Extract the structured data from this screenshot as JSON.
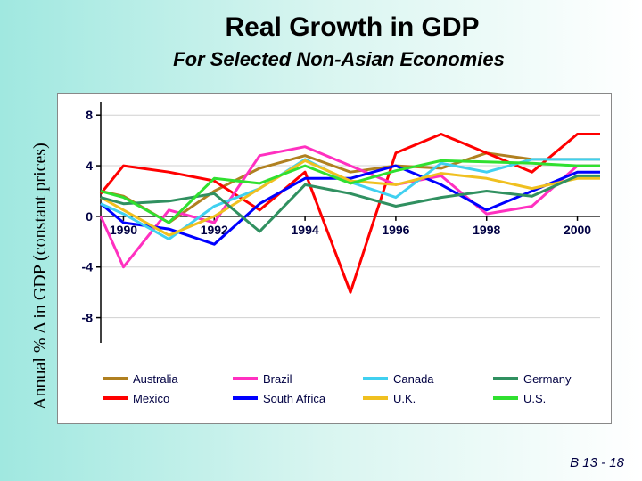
{
  "title": "Real Growth in GDP",
  "subtitle": "For Selected Non-Asian Economies",
  "ylabel": "Annual % Δ in GDP (constant prices)",
  "footer": "B 13 - 18",
  "chart": {
    "type": "line",
    "background_color": "#ffffff",
    "grid_color": "#d0d0d0",
    "axis_color": "#000000",
    "tick_font_color": "#000042",
    "tick_fontsize": 14,
    "tick_fontweight": "bold",
    "legend_fontsize": 13,
    "line_width": 3,
    "x": {
      "min": 1989.5,
      "max": 2000.5,
      "ticks": [
        1990,
        1992,
        1994,
        1996,
        1998,
        2000
      ]
    },
    "y": {
      "min": -10,
      "max": 9,
      "ticks": [
        -8,
        -4,
        0,
        4,
        8
      ]
    },
    "years": [
      1989.5,
      1990,
      1991,
      1992,
      1993,
      1994,
      1995,
      1996,
      1997,
      1998,
      1999,
      2000,
      2000.5
    ],
    "series": [
      {
        "name": "Australia",
        "color": "#b08020",
        "values": [
          2.0,
          1.6,
          -0.5,
          2.0,
          3.8,
          4.8,
          3.5,
          4.0,
          3.8,
          5.0,
          4.5,
          4.5,
          4.5
        ]
      },
      {
        "name": "Mexico",
        "color": "#ff0000",
        "values": [
          1.8,
          4.0,
          3.5,
          2.8,
          0.5,
          3.5,
          -6.0,
          5.0,
          6.5,
          5.0,
          3.5,
          6.5,
          6.5
        ]
      },
      {
        "name": "Brazil",
        "color": "#ff30c0",
        "values": [
          0.0,
          -4.0,
          0.5,
          -0.5,
          4.8,
          5.5,
          4.0,
          2.5,
          3.2,
          0.2,
          0.8,
          4.0,
          4.0
        ]
      },
      {
        "name": "South Africa",
        "color": "#0000ff",
        "values": [
          1.0,
          -0.5,
          -1.0,
          -2.2,
          1.0,
          3.0,
          3.0,
          4.0,
          2.5,
          0.5,
          2.0,
          3.5,
          3.5
        ]
      },
      {
        "name": "Canada",
        "color": "#40d0f0",
        "values": [
          1.0,
          0.2,
          -1.8,
          0.8,
          2.2,
          4.5,
          2.7,
          1.5,
          4.2,
          3.5,
          4.5,
          4.5,
          4.5
        ]
      },
      {
        "name": "U.K.",
        "color": "#f0c020",
        "values": [
          1.5,
          0.5,
          -1.5,
          0.0,
          2.2,
          4.4,
          2.8,
          2.5,
          3.4,
          3.0,
          2.2,
          3.0,
          3.0
        ]
      },
      {
        "name": "Germany",
        "color": "#309060",
        "values": [
          1.5,
          1.0,
          1.2,
          1.8,
          -1.2,
          2.5,
          1.8,
          0.8,
          1.5,
          2.0,
          1.6,
          3.2,
          3.2
        ]
      },
      {
        "name": "U.S.",
        "color": "#30e030",
        "values": [
          2.0,
          1.5,
          -0.5,
          3.0,
          2.6,
          4.0,
          2.6,
          3.6,
          4.4,
          4.3,
          4.2,
          4.0,
          4.0
        ]
      }
    ],
    "legend_order": [
      "Australia",
      "Brazil",
      "Canada",
      "Germany",
      "Mexico",
      "South Africa",
      "U.K.",
      "U.S."
    ]
  }
}
